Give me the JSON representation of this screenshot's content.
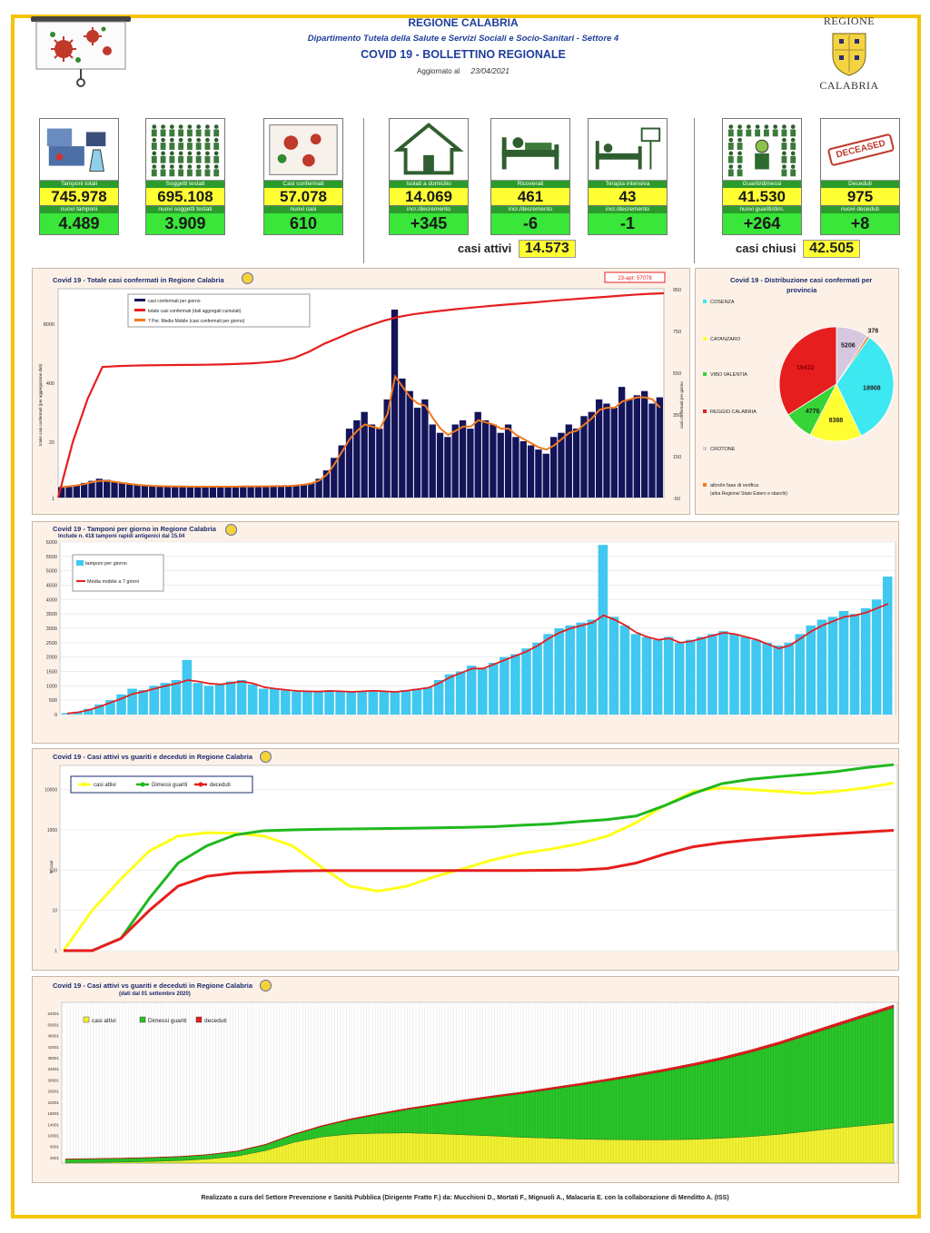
{
  "header": {
    "region": "REGIONE CALABRIA",
    "department": "Dipartimento Tutela della Salute e Servizi Sociali e Socio-Sanitari - Settore 4",
    "bulletin": "COVID 19 - BOLLETTINO REGIONALE",
    "updated_label": "Aggiornato al",
    "updated_date": "23/04/2021",
    "logo_top": "REGIONE",
    "logo_bottom": "CALABRIA"
  },
  "cards": [
    {
      "label": "Tamponi totali",
      "value": "745.978",
      "sub_label": "nuovi tamponi",
      "sub_value": "4.489",
      "icon": "lab-equipment-icon"
    },
    {
      "label": "Soggetti testati",
      "value": "695.108",
      "sub_label": "nuovi soggetti testati",
      "sub_value": "3.909",
      "icon": "people-grid-icon"
    },
    {
      "label": "Casi confermati",
      "value": "57.078",
      "sub_label": "nuovi casi",
      "sub_value": "610",
      "icon": "virus-person-icon"
    },
    {
      "label": "Isolati a domicilio",
      "value": "14.069",
      "sub_label": "incr./decremento",
      "sub_value": "+345",
      "icon": "house-icon"
    },
    {
      "label": "Ricoverati",
      "value": "461",
      "sub_label": "incr./decremento",
      "sub_value": "-6",
      "icon": "hospital-bed-icon"
    },
    {
      "label": "Terapia intensiva",
      "value": "43",
      "sub_label": "incr./decremento",
      "sub_value": "-1",
      "icon": "icu-bed-icon"
    },
    {
      "label": "Guariti/dimessi",
      "value": "41.530",
      "sub_label": "nuovi guariti/dim.",
      "sub_value": "+264",
      "icon": "recovered-person-icon"
    },
    {
      "label": "Deceduti",
      "value": "975",
      "sub_label": "nuovi deceduti",
      "sub_value": "+8",
      "icon": "deceased-stamp-icon"
    }
  ],
  "deceased_stamp": "DECEASED",
  "summary": {
    "active_label": "casi attivi",
    "active_value": "14.573",
    "closed_label": "casi chiusi",
    "closed_value": "42.505"
  },
  "footer": "Realizzato a cura del Settore Prevenzione e Sanità Pubblica (Dirigente Fratto F.) da: Mucchioni D., Mortati F., Mignuoli A., Malacaria E. con la collaborazione di Menditto A. (ISS)",
  "colors": {
    "yellow": "#ffff33",
    "green": "#39e639",
    "label_green": "#2b9c2b",
    "panel_bg": "#fdf1e7",
    "red": "#e61e1e",
    "navy": "#14145a",
    "orange": "#f07820",
    "cyan": "#40c8f0"
  },
  "chart_data": [
    {
      "type": "bar",
      "title": "Covid 19 - Totale casi confermati in Regione Calabria",
      "annotation": "23-apr; 57078",
      "ylabel_left": "totale casi confermati (per aggregazione dati)",
      "ylabel_right": "casi confermati per giorno",
      "left_ticks": [
        "1",
        "20",
        "400",
        "8000"
      ],
      "right_ticks": [
        "-50",
        "150",
        "350",
        "550",
        "750",
        "950"
      ],
      "legend": [
        "casi confermati per giorno",
        "totale casi confermati (dati aggregati cumulati)",
        "7 Per. Media Mobile (casi confermati per giorno)"
      ],
      "right_ylim": [
        -50,
        950
      ],
      "daily_cases_estimate": [
        0,
        5,
        10,
        20,
        30,
        40,
        35,
        25,
        20,
        15,
        10,
        8,
        6,
        5,
        4,
        3,
        3,
        2,
        2,
        2,
        2,
        2,
        2,
        2,
        3,
        3,
        4,
        4,
        5,
        5,
        6,
        8,
        12,
        20,
        40,
        80,
        140,
        200,
        280,
        320,
        360,
        300,
        280,
        420,
        850,
        520,
        460,
        380,
        420,
        300,
        260,
        240,
        300,
        320,
        280,
        360,
        320,
        300,
        260,
        300,
        240,
        220,
        200,
        180,
        160,
        240,
        260,
        300,
        280,
        340,
        360,
        420,
        400,
        380,
        480,
        420,
        440,
        460,
        400,
        430
      ],
      "moving_avg_estimate": [
        0,
        4,
        8,
        15,
        24,
        30,
        30,
        25,
        20,
        15,
        11,
        8,
        6,
        5,
        4,
        3,
        3,
        2,
        2,
        2,
        2,
        2,
        2,
        2,
        3,
        3,
        4,
        4,
        5,
        5,
        6,
        8,
        12,
        18,
        32,
        60,
        110,
        170,
        230,
        270,
        300,
        290,
        280,
        350,
        530,
        480,
        430,
        400,
        390,
        330,
        280,
        250,
        270,
        290,
        290,
        320,
        310,
        300,
        280,
        280,
        250,
        230,
        210,
        190,
        180,
        200,
        230,
        260,
        270,
        300,
        330,
        370,
        380,
        380,
        410,
        420,
        430,
        430,
        420,
        380
      ],
      "cumulative_total_estimate": [
        1,
        20,
        200,
        1100,
        1150,
        1180,
        1200,
        1210,
        1220,
        1230,
        1240,
        1260,
        1290,
        1330,
        1400,
        1500,
        1800,
        2500,
        3800,
        5300,
        7500,
        10000,
        13000,
        16000,
        18500,
        20500,
        22500,
        24500,
        26500,
        28500,
        30500,
        32500,
        34500,
        37000,
        39500,
        42000,
        44500,
        47000,
        50000,
        53000,
        55500,
        57078
      ]
    },
    {
      "type": "pie",
      "title": "Covid 19 - Distribuzione casi confermati per",
      "title_line2": "provincia",
      "categories": [
        "COSENZA",
        "CATANZARO",
        "VIBO VALENTIA",
        "REGGIO CALABRIA",
        "CROTONE",
        "altro/in fase di verifica"
      ],
      "other_note": "(altra Regione/ Stato Estero e sbarchi)",
      "values": [
        18908,
        8388,
        4776,
        19422,
        5206,
        378
      ],
      "colors": [
        "#3de8f0",
        "#ffff33",
        "#37d437",
        "#e61e1e",
        "#d6c8e0",
        "#f07820"
      ]
    },
    {
      "type": "bar",
      "title": "Covid 19 - Tamponi per giorno in Regione Calabria",
      "subtitle": "Include n. 418 tamponi rapidi antigenici dal 15.04",
      "legend": [
        "tamponi per giorno",
        "Media mobile a 7 giorni"
      ],
      "y_ticks": [
        "0",
        "500",
        "1000",
        "1500",
        "2000",
        "2500",
        "3000",
        "3500",
        "4000",
        "4500",
        "5000",
        "5500",
        "6000"
      ],
      "ylim": [
        0,
        6000
      ],
      "daily_tests_estimate": [
        50,
        100,
        200,
        350,
        500,
        700,
        900,
        850,
        1000,
        1100,
        1200,
        1900,
        1100,
        1000,
        1050,
        1150,
        1200,
        1050,
        900,
        900,
        850,
        800,
        820,
        800,
        850,
        800,
        780,
        820,
        850,
        800,
        780,
        850,
        900,
        950,
        1200,
        1400,
        1500,
        1700,
        1600,
        1800,
        2000,
        2100,
        2300,
        2500,
        2800,
        3000,
        3100,
        3200,
        3300,
        5900,
        3400,
        3100,
        2800,
        2700,
        2600,
        2700,
        2500,
        2600,
        2700,
        2800,
        2900,
        2800,
        2700,
        2600,
        2500,
        2400,
        2500,
        2800,
        3100,
        3300,
        3400,
        3600,
        3500,
        3700,
        4000,
        4800
      ],
      "moving_avg_estimate": [
        40,
        80,
        160,
        280,
        420,
        560,
        720,
        800,
        900,
        1000,
        1080,
        1200,
        1150,
        1080,
        1050,
        1100,
        1150,
        1080,
        950,
        900,
        860,
        820,
        810,
        800,
        820,
        810,
        790,
        810,
        830,
        810,
        790,
        830,
        880,
        930,
        1100,
        1300,
        1450,
        1600,
        1600,
        1750,
        1900,
        2050,
        2200,
        2400,
        2650,
        2850,
        3000,
        3100,
        3200,
        3450,
        3300,
        3100,
        2850,
        2700,
        2600,
        2650,
        2500,
        2550,
        2650,
        2750,
        2850,
        2800,
        2700,
        2600,
        2450,
        2300,
        2400,
        2650,
        2900,
        3100,
        3250,
        3400,
        3450,
        3550,
        3700,
        3850
      ]
    },
    {
      "type": "line",
      "title": "Covid 19 - Casi attivi vs guariti e deceduti in Regione Calabria",
      "scale": "log",
      "y_ticks": [
        "1",
        "10",
        "100",
        "1000",
        "10000"
      ],
      "ylabel": "N° casi",
      "series": [
        {
          "name": "casi attivi",
          "color": "#ffff1a",
          "values": [
            1,
            10,
            60,
            300,
            700,
            850,
            820,
            700,
            400,
            120,
            40,
            30,
            40,
            70,
            110,
            180,
            260,
            330,
            450,
            700,
            1500,
            4000,
            9000,
            11000,
            10000,
            9000,
            8000,
            9000,
            11000,
            14573
          ]
        },
        {
          "name": "Dimessi guariti",
          "color": "#1fb81f",
          "values": [
            1,
            1,
            2,
            20,
            150,
            400,
            750,
            950,
            1000,
            1030,
            1050,
            1070,
            1090,
            1120,
            1150,
            1200,
            1300,
            1400,
            1600,
            1800,
            2200,
            4000,
            8000,
            14000,
            18000,
            21000,
            24000,
            28000,
            35000,
            41530
          ]
        },
        {
          "name": "deceduti",
          "color": "#e61e1e",
          "values": [
            1,
            1,
            2,
            10,
            40,
            70,
            85,
            90,
            95,
            97,
            97,
            97,
            97,
            97,
            98,
            98,
            98,
            99,
            100,
            110,
            150,
            250,
            380,
            480,
            560,
            640,
            720,
            800,
            880,
            975
          ]
        }
      ]
    },
    {
      "type": "area",
      "title": "Covid 19 - Casi attivi vs guariti e deceduti in Regione Calabria",
      "subtitle": "(dati dal 01 settembre 2020)",
      "y_ticks": [
        "2001",
        "6001",
        "10001",
        "14001",
        "18001",
        "22001",
        "26001",
        "30001",
        "34001",
        "38001",
        "42001",
        "46001",
        "50001",
        "54001"
      ],
      "ylim": [
        0,
        58000
      ],
      "series": [
        {
          "name": "casi attivi",
          "color": "#f0f030",
          "values": [
            200,
            300,
            400,
            600,
            900,
            1500,
            2500,
            4500,
            7500,
            9500,
            10500,
            10800,
            10900,
            10600,
            10200,
            9800,
            9300,
            9000,
            8700,
            8500,
            8400,
            8400,
            8600,
            9000,
            9600,
            10400,
            11500,
            12600,
            13600,
            14573
          ]
        },
        {
          "name": "Dimessi guariti",
          "color": "#29c429",
          "values": [
            1200,
            1250,
            1300,
            1350,
            1400,
            1500,
            1700,
            2100,
            2800,
            3800,
            5200,
            6800,
            8500,
            10300,
            12200,
            14000,
            15800,
            17600,
            19400,
            21200,
            23000,
            24800,
            26600,
            28400,
            30400,
            32500,
            34700,
            36900,
            39200,
            41530
          ]
        },
        {
          "name": "deceduti",
          "color": "#e61e1e",
          "values": [
            97,
            98,
            100,
            105,
            110,
            120,
            150,
            190,
            240,
            290,
            340,
            390,
            430,
            470,
            510,
            550,
            590,
            630,
            670,
            710,
            750,
            790,
            820,
            850,
            880,
            905,
            925,
            945,
            960,
            975
          ]
        }
      ]
    }
  ]
}
